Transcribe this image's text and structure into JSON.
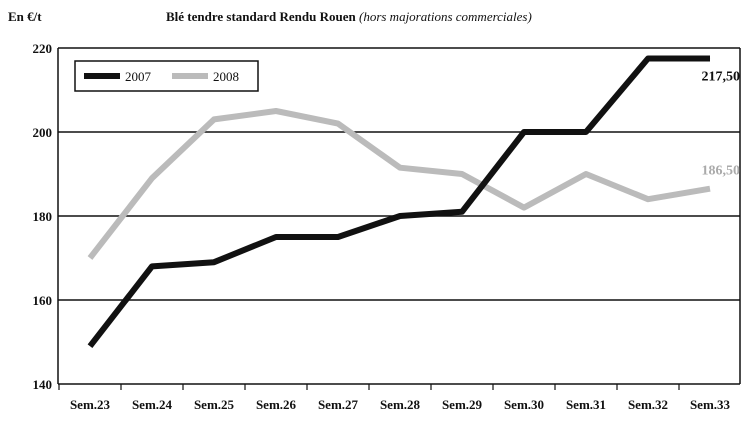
{
  "chart_data": {
    "type": "line",
    "title": "Blé tendre standard Rendu Rouen",
    "subtitle": "(hors majorations commerciales)",
    "ylabel": "En €/t",
    "xlabel": "",
    "categories": [
      "Sem.23",
      "Sem.24",
      "Sem.25",
      "Sem.26",
      "Sem.27",
      "Sem.28",
      "Sem.29",
      "Sem.30",
      "Sem.31",
      "Sem.32",
      "Sem.33"
    ],
    "ylim": [
      140,
      220
    ],
    "yticks": [
      140,
      160,
      180,
      200,
      220
    ],
    "grid": "horizontal",
    "legend_position": "top-left",
    "series": [
      {
        "name": "2007",
        "color": "#111111",
        "values": [
          149,
          168,
          169,
          175,
          175,
          180,
          181,
          200,
          200,
          217.5,
          217.5
        ],
        "end_label": "217,50"
      },
      {
        "name": "2008",
        "color": "#bbbbbb",
        "values": [
          170,
          189,
          203,
          205,
          202,
          191.5,
          190,
          182,
          190,
          184,
          186.5
        ],
        "end_label": "186,50"
      }
    ]
  }
}
